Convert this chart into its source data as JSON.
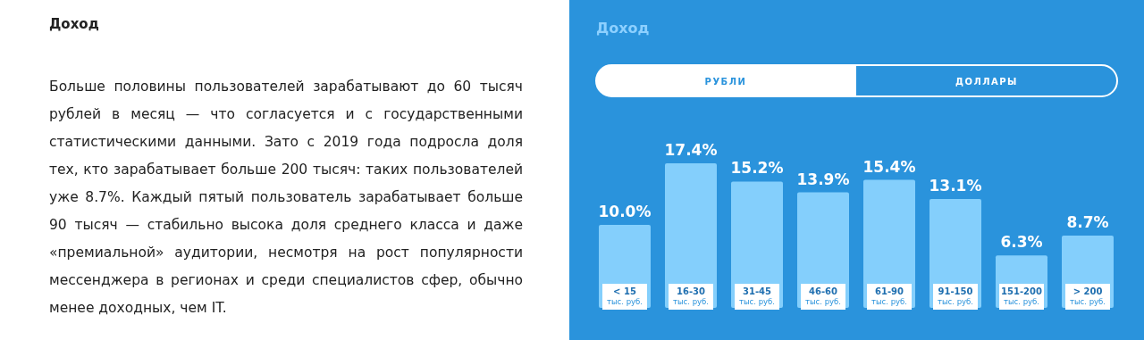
{
  "chart_data": {
    "type": "bar",
    "title": "Доход",
    "annotations": [
      "Доход",
      "Больше половины пользователей зарабатывают до 60 тысяч рублей в месяц — что согласуется и с государственными статистическими данными. Зато с 2019 года подросла доля тех, кто зарабатывает больше 200 тысяч: таких пользователей уже 8.7%. Каждый пятый пользователь зарабатывает больше 90 тысяч — стабильно высока доля среднего класса и даже «премиальной» аудитории, несмотря на рост популярности мессенджера в регионах и среди специалистов сфер, обычно менее доходных, чем IT.",
      "РУБЛИ",
      "ДОЛЛАРЫ"
    ],
    "categories": [
      "< 15\nтыс. руб.",
      "16-30\nтыс. руб.",
      "31-45\nтыс. руб.",
      "46-60\nтыс. руб.",
      "61-90\nтыс. руб.",
      "91-150\nтыс. руб.",
      "151-200\nтыс. руб.",
      "> 200\nтыс. руб."
    ],
    "values": [
      10.0,
      17.4,
      15.2,
      13.9,
      15.4,
      13.1,
      6.3,
      8.7
    ],
    "value_labels": [
      "10.0%",
      "17.4%",
      "15.2%",
      "13.9%",
      "15.4%",
      "13.1%",
      "6.3%",
      "8.7%"
    ],
    "color": "#84cffc"
  }
}
